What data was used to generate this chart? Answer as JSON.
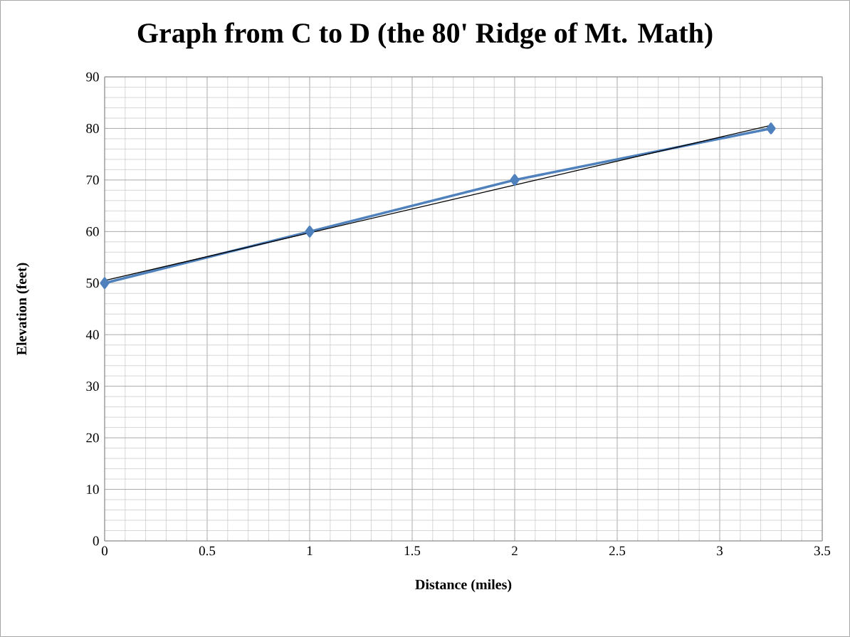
{
  "chart_data": {
    "type": "line",
    "title": "Graph from C to D (the 80' Ridge of Mt. Math)",
    "xlabel": "Distance (miles)",
    "ylabel": "Elevation (feet)",
    "xlim": [
      0,
      3.5
    ],
    "xticks": [
      0,
      0.5,
      1,
      1.5,
      2,
      2.5,
      3,
      3.5
    ],
    "ylim": [
      0,
      90
    ],
    "yticks": [
      0,
      10,
      20,
      30,
      40,
      50,
      60,
      70,
      80,
      90
    ],
    "grid": true,
    "line_style": "solid",
    "series": [
      {
        "color": "#4f81bd",
        "marker": "diamond",
        "x": [
          0,
          1,
          2,
          3.25
        ],
        "values": [
          50,
          60,
          70,
          80
        ]
      },
      {
        "color": "#000000",
        "marker": "none",
        "x": [
          0,
          3.25
        ],
        "values": [
          50.5,
          80.6
        ]
      }
    ]
  }
}
